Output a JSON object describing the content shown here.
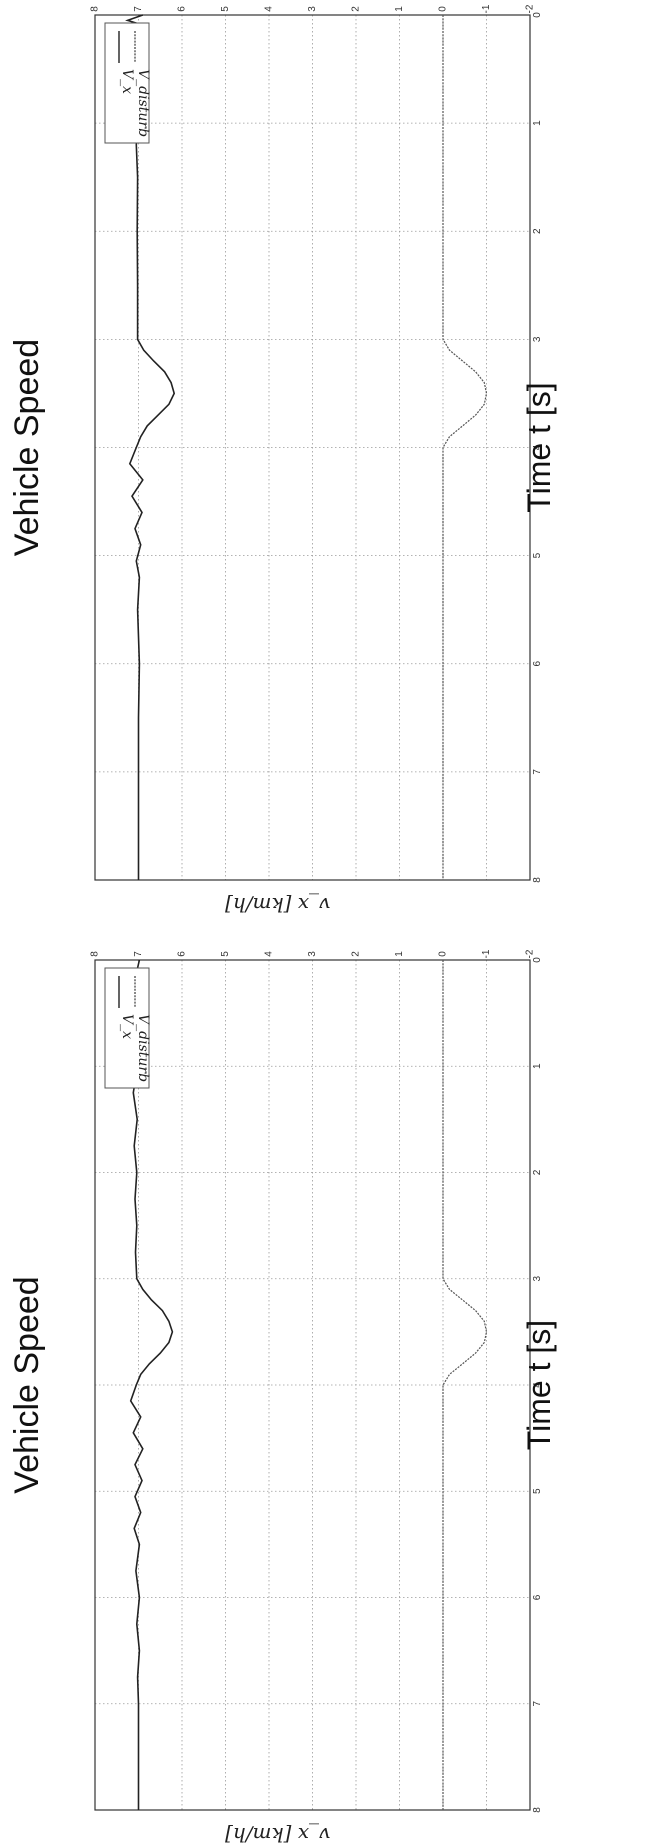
{
  "chart_data": [
    {
      "type": "line",
      "title": "Vehicle Speed",
      "xlabel": "Time t [s]",
      "ylabel": "v_x [km/h]",
      "xlim": [
        0,
        8
      ],
      "ylim": [
        -2,
        8
      ],
      "xticks": [
        "0",
        "1",
        "2",
        "3",
        "4",
        "5",
        "6",
        "7",
        "8"
      ],
      "yticks": [
        "-2",
        "-1",
        "0",
        "1",
        "2",
        "3",
        "4",
        "5",
        "6",
        "7",
        "8"
      ],
      "grid": true,
      "legend_position": "top-right",
      "series": [
        {
          "name": "V_x",
          "color": "#222222",
          "x": [
            0,
            0.25,
            0.5,
            0.75,
            1,
            1.25,
            1.5,
            1.75,
            2,
            2.25,
            2.5,
            2.75,
            3,
            3.1,
            3.2,
            3.3,
            3.4,
            3.5,
            3.6,
            3.7,
            3.8,
            3.9,
            4,
            4.15,
            4.3,
            4.45,
            4.6,
            4.75,
            4.9,
            5.05,
            5.2,
            5.35,
            5.5,
            5.75,
            6,
            6.25,
            6.5,
            6.75,
            7,
            7.5,
            8
          ],
          "y": [
            6.98,
            7.12,
            7.02,
            7.14,
            7.02,
            7.12,
            7.03,
            7.1,
            7.04,
            7.08,
            7.04,
            7.07,
            7.04,
            6.9,
            6.7,
            6.45,
            6.3,
            6.22,
            6.3,
            6.5,
            6.75,
            6.95,
            7.05,
            7.18,
            6.95,
            7.12,
            6.9,
            7.08,
            6.92,
            7.08,
            6.95,
            7.1,
            6.98,
            7.06,
            6.98,
            7.04,
            6.98,
            7.02,
            7.0,
            7.0,
            7.0
          ]
        },
        {
          "name": "V_disturb",
          "color": "#555555",
          "x": [
            0,
            1,
            2,
            3,
            3.1,
            3.2,
            3.3,
            3.4,
            3.5,
            3.6,
            3.7,
            3.8,
            3.9,
            4,
            4.1,
            5,
            6,
            7,
            8
          ],
          "y": [
            0,
            0,
            0,
            0,
            -0.15,
            -0.45,
            -0.75,
            -0.95,
            -1.0,
            -0.95,
            -0.75,
            -0.45,
            -0.15,
            0,
            0,
            0,
            0,
            0,
            0
          ]
        }
      ]
    },
    {
      "type": "line",
      "title": "Vehicle Speed",
      "xlabel": "Time t [s]",
      "ylabel": "v_x [km/h]",
      "xlim": [
        0,
        8
      ],
      "ylim": [
        -2,
        8
      ],
      "xticks": [
        "0",
        "1",
        "2",
        "3",
        "4",
        "5",
        "6",
        "7",
        "8"
      ],
      "yticks": [
        "-2",
        "-1",
        "0",
        "1",
        "2",
        "3",
        "4",
        "5",
        "6",
        "7",
        "8"
      ],
      "grid": true,
      "legend_position": "top-right",
      "series": [
        {
          "name": "V_x",
          "color": "#222222",
          "x": [
            0,
            0.05,
            0.1,
            0.15,
            0.2,
            0.3,
            0.4,
            0.5,
            0.6,
            0.7,
            0.8,
            0.9,
            1,
            1.2,
            1.5,
            2,
            2.5,
            3,
            3.1,
            3.2,
            3.3,
            3.4,
            3.5,
            3.6,
            3.7,
            3.8,
            3.9,
            4,
            4.15,
            4.3,
            4.45,
            4.6,
            4.75,
            4.9,
            5.05,
            5.2,
            5.5,
            6,
            6.5,
            7,
            7.5,
            8
          ],
          "y": [
            6.9,
            7.25,
            6.85,
            7.3,
            6.9,
            7.2,
            6.95,
            7.15,
            6.95,
            7.12,
            6.98,
            7.08,
            7.0,
            7.05,
            7.02,
            7.03,
            7.02,
            7.02,
            6.88,
            6.65,
            6.4,
            6.25,
            6.18,
            6.3,
            6.55,
            6.8,
            6.95,
            7.05,
            7.2,
            6.9,
            7.15,
            6.92,
            7.08,
            6.95,
            7.05,
            6.98,
            7.02,
            6.98,
            7.0,
            7.0,
            7.0,
            7.0
          ]
        },
        {
          "name": "V_disturb",
          "color": "#555555",
          "x": [
            0,
            1,
            2,
            3,
            3.1,
            3.2,
            3.3,
            3.4,
            3.5,
            3.6,
            3.7,
            3.8,
            3.9,
            4,
            4.1,
            5,
            6,
            7,
            8
          ],
          "y": [
            0,
            0,
            0,
            0,
            -0.15,
            -0.45,
            -0.75,
            -0.95,
            -1.0,
            -0.95,
            -0.75,
            -0.45,
            -0.15,
            0,
            0,
            0,
            0,
            0,
            0
          ]
        }
      ]
    }
  ]
}
